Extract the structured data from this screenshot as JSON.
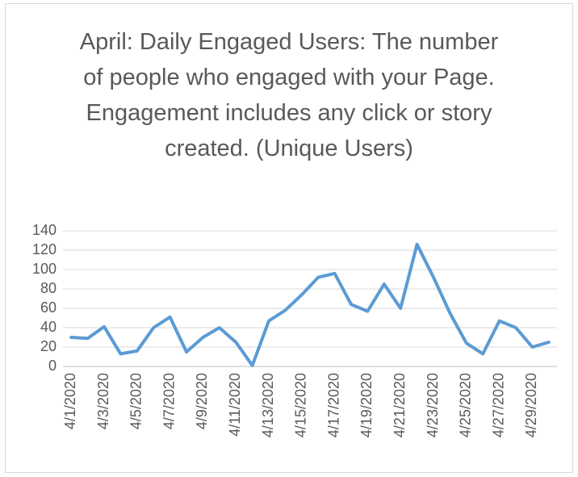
{
  "chart_data": {
    "type": "line",
    "title": "April: Daily Engaged Users: The number of people who engaged with your Page. Engagement includes any click or story created. (Unique Users)",
    "categories": [
      "4/1/2020",
      null,
      "4/3/2020",
      null,
      "4/5/2020",
      null,
      "4/7/2020",
      null,
      "4/9/2020",
      null,
      "4/11/2020",
      null,
      "4/13/2020",
      null,
      "4/15/2020",
      null,
      "4/17/2020",
      null,
      "4/19/2020",
      null,
      "4/21/2020",
      null,
      "4/23/2020",
      null,
      "4/25/2020",
      null,
      "4/27/2020",
      null,
      "4/29/2020",
      null
    ],
    "series": [
      {
        "name": "Daily Engaged Users",
        "color": "#5b9bd5",
        "values": [
          30,
          29,
          41,
          13,
          16,
          40,
          51,
          15,
          30,
          40,
          25,
          1,
          47,
          58,
          74,
          92,
          96,
          64,
          57,
          85,
          60,
          126,
          92,
          55,
          24,
          13,
          47,
          40,
          20,
          25
        ]
      }
    ],
    "ylim": [
      0,
      140
    ],
    "yticks": [
      0,
      20,
      40,
      60,
      80,
      100,
      120,
      140
    ],
    "grid": true
  }
}
